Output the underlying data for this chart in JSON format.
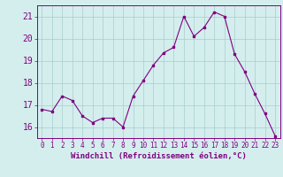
{
  "x": [
    0,
    1,
    2,
    3,
    4,
    5,
    6,
    7,
    8,
    9,
    10,
    11,
    12,
    13,
    14,
    15,
    16,
    17,
    18,
    19,
    20,
    21,
    22,
    23
  ],
  "y": [
    16.8,
    16.7,
    17.4,
    17.2,
    16.5,
    16.2,
    16.4,
    16.4,
    16.0,
    17.4,
    18.1,
    18.8,
    19.35,
    19.6,
    21.0,
    20.1,
    20.5,
    21.2,
    21.0,
    19.3,
    18.5,
    17.5,
    16.6,
    15.6
  ],
  "ylim": [
    15.5,
    21.5
  ],
  "yticks": [
    16,
    17,
    18,
    19,
    20,
    21
  ],
  "xticks": [
    0,
    1,
    2,
    3,
    4,
    5,
    6,
    7,
    8,
    9,
    10,
    11,
    12,
    13,
    14,
    15,
    16,
    17,
    18,
    19,
    20,
    21,
    22,
    23
  ],
  "xlabel": "Windchill (Refroidissement éolien,°C)",
  "line_color": "#800080",
  "marker_color": "#800080",
  "bg_color": "#d4eeee",
  "grid_color": "#aacccc",
  "axis_color": "#800080",
  "tick_color": "#800080",
  "label_color": "#800080",
  "xlabel_fontsize": 6.5,
  "ytick_fontsize": 7.0,
  "xtick_fontsize": 5.5
}
